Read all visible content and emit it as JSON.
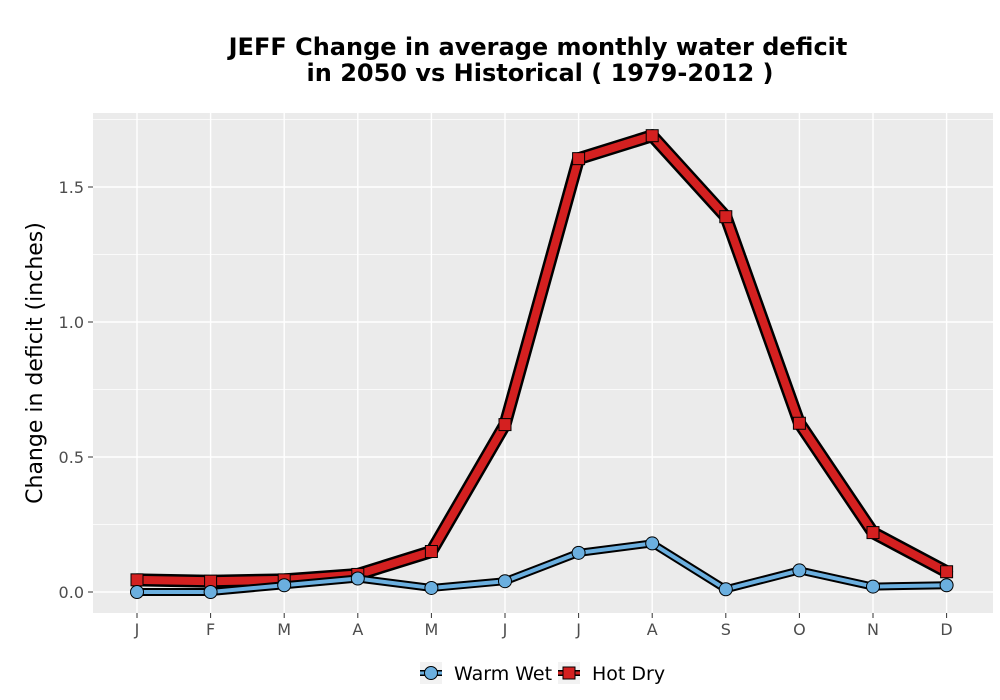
{
  "chart_data": {
    "type": "line",
    "title": "JEFF  Change in average monthly water deficit",
    "subtitle": "in 2050 vs Historical ( 1979-2012 )",
    "xlabel": "",
    "ylabel": "Change in deficit (inches)",
    "categories": [
      "J",
      "F",
      "M",
      "A",
      "M",
      "J",
      "J",
      "A",
      "S",
      "O",
      "N",
      "D"
    ],
    "ylim": [
      -0.08,
      1.78
    ],
    "yticks": [
      0.0,
      0.5,
      1.0,
      1.5
    ],
    "ytick_labels": [
      "0.0",
      "0.5",
      "1.0",
      "1.5"
    ],
    "grid": true,
    "legend_position": "bottom",
    "series": [
      {
        "name": "Warm Wet",
        "marker": "circle",
        "fill": "#6bafdf",
        "values": [
          0.0,
          0.0,
          0.025,
          0.05,
          0.015,
          0.04,
          0.145,
          0.18,
          0.01,
          0.08,
          0.02,
          0.025
        ]
      },
      {
        "name": "Hot Dry",
        "marker": "square",
        "fill": "#d42020",
        "values": [
          0.045,
          0.04,
          0.045,
          0.065,
          0.15,
          0.62,
          1.605,
          1.69,
          1.39,
          0.625,
          0.22,
          0.075
        ]
      }
    ]
  }
}
